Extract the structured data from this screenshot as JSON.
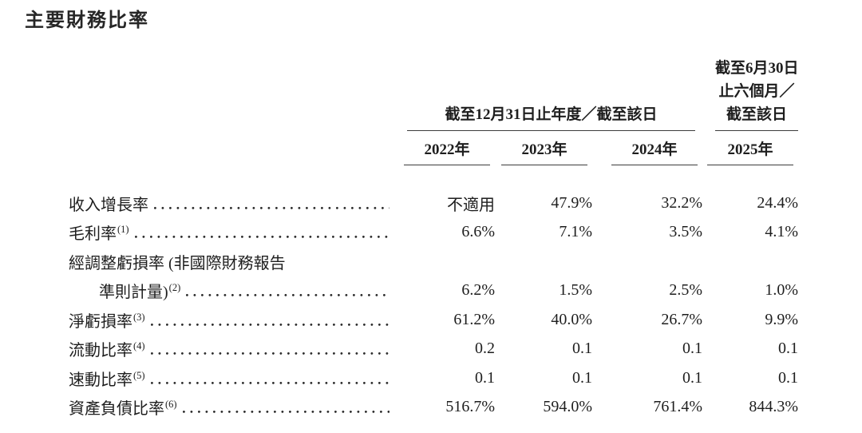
{
  "page": {
    "title": "主要財務比率"
  },
  "colors": {
    "text": "#1e1e1e",
    "rule": "#3c3c3c",
    "background": "#ffffff"
  },
  "table": {
    "header": {
      "annual_group": "截至12月31日止年度／截至該日",
      "interim_group_lines": [
        "截至6月30日",
        "止六個月／",
        "截至該日"
      ],
      "years": [
        "2022年",
        "2023年",
        "2024年",
        "2025年"
      ]
    },
    "rows": [
      {
        "label": "收入增長率",
        "sup": "",
        "values": [
          "不適用",
          "47.9%",
          "32.2%",
          "24.4%"
        ]
      },
      {
        "label": "毛利率",
        "sup": "(1)",
        "values": [
          "6.6%",
          "7.1%",
          "3.5%",
          "4.1%"
        ]
      },
      {
        "label": "經調整虧損率 (非國際財務報告",
        "sup": "",
        "values": [
          "",
          "",
          "",
          ""
        ]
      },
      {
        "label": "準則計量)",
        "sup": "(2)",
        "values": [
          "6.2%",
          "1.5%",
          "2.5%",
          "1.0%"
        ]
      },
      {
        "label": "淨虧損率",
        "sup": "(3)",
        "values": [
          "61.2%",
          "40.0%",
          "26.7%",
          "9.9%"
        ]
      },
      {
        "label": "流動比率",
        "sup": "(4)",
        "values": [
          "0.2",
          "0.1",
          "0.1",
          "0.1"
        ]
      },
      {
        "label": "速動比率",
        "sup": "(5)",
        "values": [
          "0.1",
          "0.1",
          "0.1",
          "0.1"
        ]
      },
      {
        "label": "資產負債比率",
        "sup": "(6)",
        "values": [
          "516.7%",
          "594.0%",
          "761.4%",
          "844.3%"
        ]
      }
    ]
  }
}
